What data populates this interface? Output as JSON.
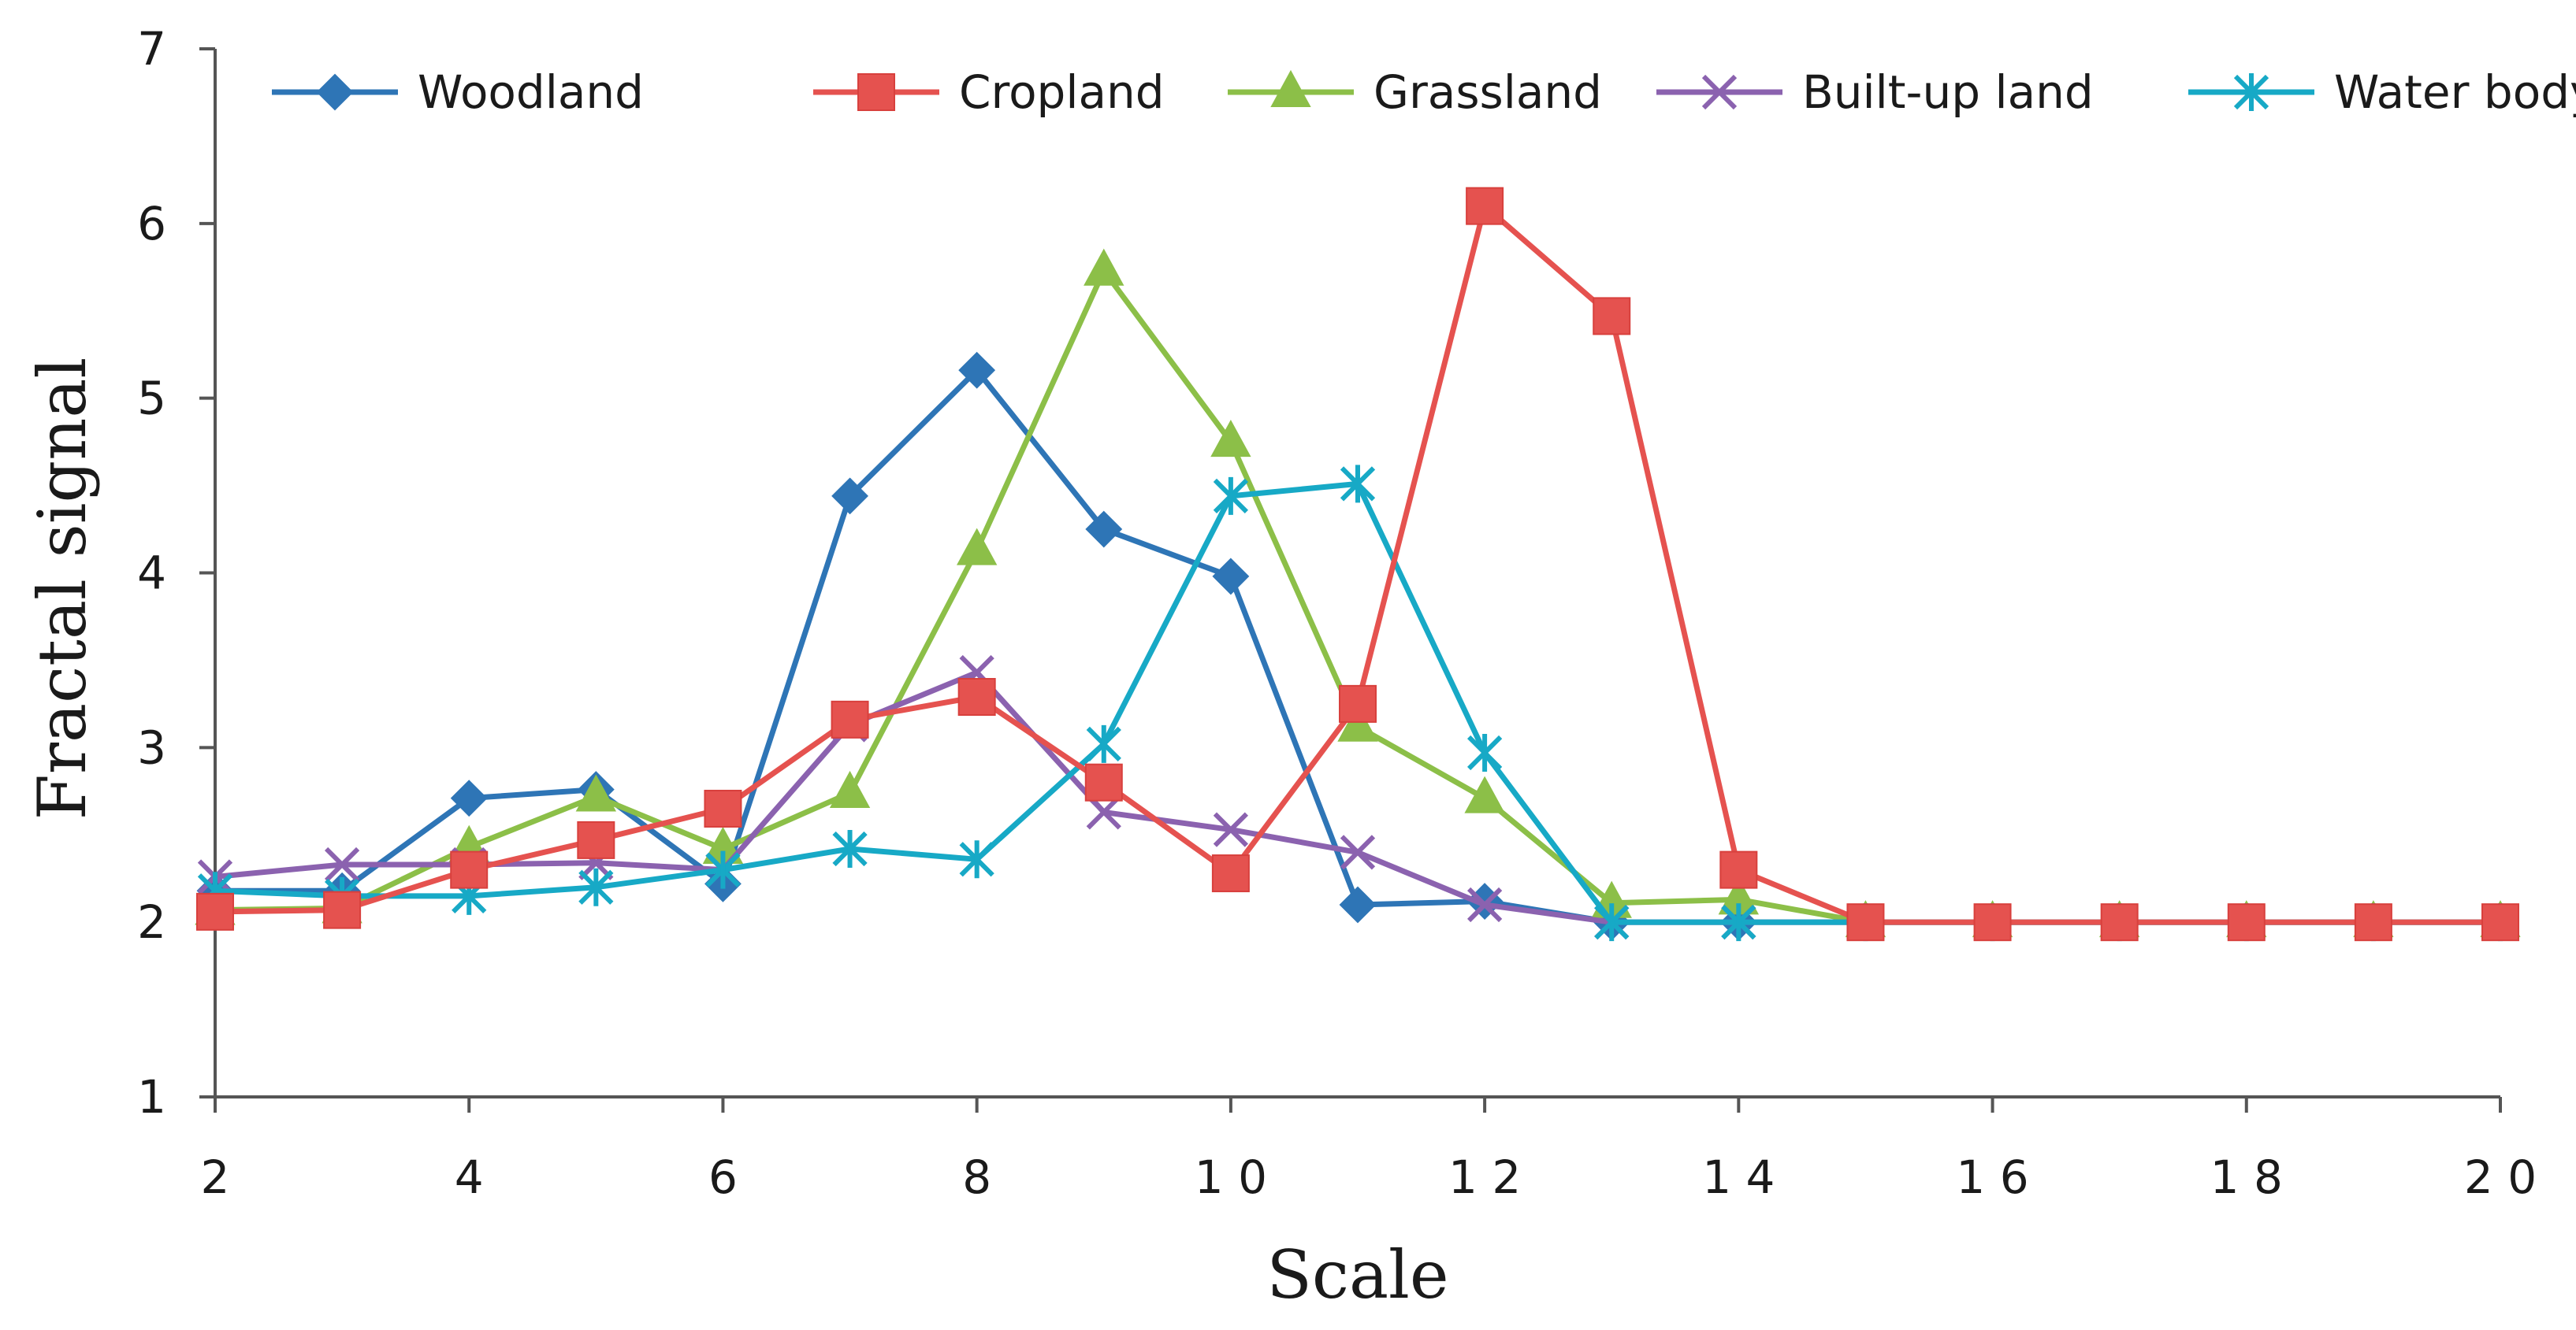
{
  "chart_data": {
    "type": "line",
    "title": "",
    "xlabel": "Scale",
    "ylabel": "Fractal signal",
    "x": [
      2,
      3,
      4,
      5,
      6,
      7,
      8,
      9,
      10,
      11,
      12,
      13,
      14,
      15,
      16,
      17,
      18,
      19,
      20
    ],
    "xticks": [
      2,
      4,
      6,
      8,
      10,
      12,
      14,
      16,
      18,
      20
    ],
    "xtick_labels": [
      "2",
      "4",
      "6",
      "8",
      "1 0",
      "1 2",
      "1 4",
      "1 6",
      "1 8",
      "2 0"
    ],
    "yticks": [
      1,
      2,
      3,
      4,
      5,
      6,
      7
    ],
    "ytick_labels": [
      "1",
      "2",
      "3",
      "4",
      "5",
      "6",
      "7"
    ],
    "xlim": [
      2,
      20
    ],
    "ylim": [
      1,
      7
    ],
    "grid": false,
    "legend_position": "top",
    "series": [
      {
        "name": "Woodland",
        "color": "#2E75B6",
        "marker": "diamond",
        "values": [
          2.18,
          2.18,
          2.71,
          2.76,
          2.22,
          4.44,
          5.16,
          4.25,
          3.98,
          2.1,
          2.12,
          2.0,
          2.0,
          2.0,
          2.0,
          2.0,
          2.0,
          2.0,
          2.0
        ]
      },
      {
        "name": "Grassland",
        "color": "#8CBF48",
        "marker": "triangle",
        "values": [
          2.07,
          2.08,
          2.43,
          2.72,
          2.42,
          2.74,
          4.13,
          5.73,
          4.75,
          3.12,
          2.71,
          2.11,
          2.13,
          2.0,
          2.0,
          2.0,
          2.0,
          2.0,
          2.0
        ]
      },
      {
        "name": "Built-up land",
        "color": "#8B62AF",
        "marker": "x",
        "values": [
          2.26,
          2.33,
          2.33,
          2.34,
          2.3,
          3.13,
          3.43,
          2.63,
          2.53,
          2.4,
          2.1,
          2.0,
          2.0,
          2.0,
          2.0,
          2.0,
          2.0,
          2.0,
          2.0
        ]
      },
      {
        "name": "Water body",
        "color": "#17A9C6",
        "marker": "star",
        "values": [
          2.18,
          2.15,
          2.15,
          2.2,
          2.3,
          2.42,
          2.36,
          3.02,
          4.44,
          4.51,
          2.97,
          2.0,
          2.0,
          2.0,
          2.0,
          2.0,
          2.0,
          2.0,
          2.0
        ]
      },
      {
        "name": "Cropland",
        "color": "#E5524F",
        "marker": "square",
        "values": [
          2.06,
          2.07,
          2.3,
          2.47,
          2.65,
          3.16,
          3.29,
          2.8,
          2.28,
          3.25,
          6.1,
          5.47,
          2.3,
          2.0,
          2.0,
          2.0,
          2.0,
          2.0,
          2.0
        ]
      }
    ],
    "legend_order": [
      "Woodland",
      "Cropland",
      "Grassland",
      "Built-up land",
      "Water body"
    ]
  }
}
